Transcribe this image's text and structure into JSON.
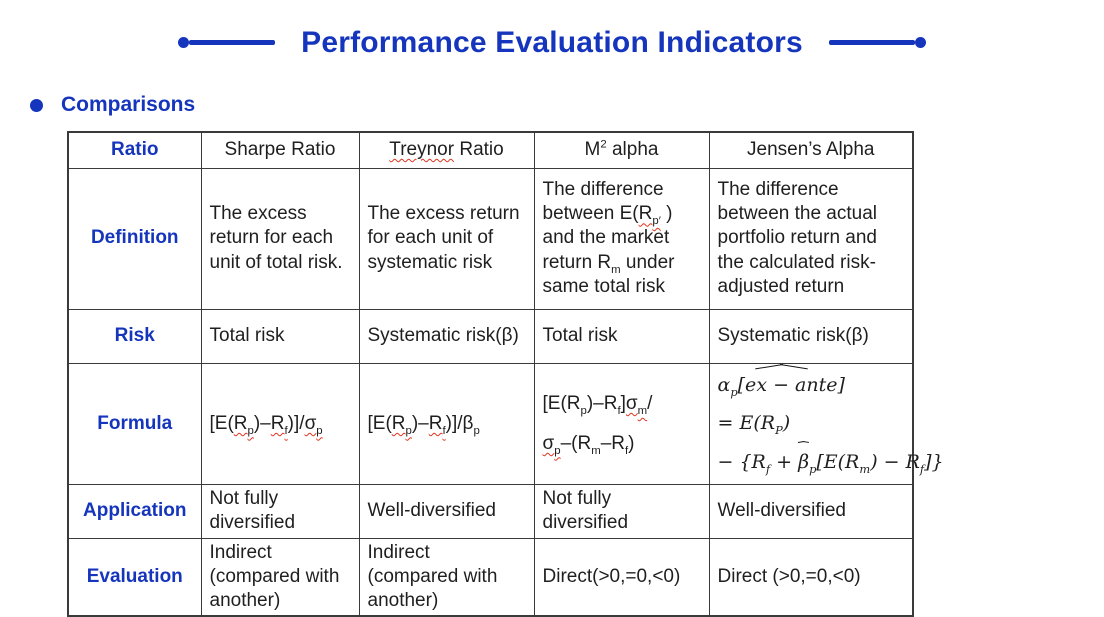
{
  "colors": {
    "accent_blue": "#1535BD",
    "body_text": "#1F1F1F",
    "table_border": "#3A3A3A",
    "spellcheck_red": "#E0321E"
  },
  "title": {
    "text": "Performance Evaluation Indicators"
  },
  "section": {
    "label": "Comparisons"
  },
  "table": {
    "corner_label": "Ratio",
    "headers": {
      "sharpe": "Sharpe Ratio",
      "treynor": [
        {
          "t": "Treynor",
          "sq": true
        },
        {
          "t": " Ratio"
        }
      ],
      "m2": [
        {
          "t": "M"
        },
        {
          "t": "2",
          "sup": true
        },
        {
          "t": " alpha"
        }
      ],
      "jensen": "Jensen’s Alpha"
    },
    "definition": {
      "label": "Definition",
      "sharpe": "The excess return for each unit of total risk.",
      "treynor": "The excess return for each unit of systematic risk",
      "m2": [
        {
          "t": "The difference between E("
        },
        {
          "t": "R",
          "sq": true
        },
        {
          "t": "p′",
          "sub": true,
          "sq": true
        },
        {
          "t": " ) and the market return R"
        },
        {
          "t": "m",
          "sub": true
        },
        {
          "t": " under same total risk"
        }
      ],
      "jensen": "The difference between the actual portfolio return and the calculated risk-adjusted return"
    },
    "risk": {
      "label": "Risk",
      "sharpe": "Total risk",
      "treynor": "Systematic risk(β)",
      "m2": "Total risk",
      "jensen": "Systematic risk(β)"
    },
    "formula": {
      "label": "Formula",
      "sharpe": [
        {
          "t": "[E("
        },
        {
          "t": "R",
          "sq": true
        },
        {
          "t": "p",
          "sub": true,
          "sq": true
        },
        {
          "t": ")–"
        },
        {
          "t": "R",
          "sq": true
        },
        {
          "t": "f",
          "sub": true,
          "sq": true
        },
        {
          "t": ")]/"
        },
        {
          "t": "σ",
          "sq": true
        },
        {
          "t": "p",
          "sub": true,
          "sq": true
        }
      ],
      "treynor": [
        {
          "t": "[E("
        },
        {
          "t": "R",
          "sq": true
        },
        {
          "t": "p",
          "sub": true,
          "sq": true
        },
        {
          "t": ")–"
        },
        {
          "t": "R",
          "sq": true
        },
        {
          "t": "f",
          "sub": true,
          "sq": true
        },
        {
          "t": ")]/β"
        },
        {
          "t": "p",
          "sub": true
        }
      ],
      "m2_line1": [
        {
          "t": "[E(R"
        },
        {
          "t": "p",
          "sub": true
        },
        {
          "t": ")–R"
        },
        {
          "t": "f",
          "sub": true
        },
        {
          "t": "]"
        },
        {
          "t": "σ",
          "sq": true
        },
        {
          "t": "m",
          "sub": true,
          "sq": true
        },
        {
          "t": "/"
        }
      ],
      "m2_line2": [
        {
          "t": "σ",
          "sq": true
        },
        {
          "t": "p",
          "sub": true,
          "sq": true
        },
        {
          "t": "–(R"
        },
        {
          "t": "m",
          "sub": true
        },
        {
          "t": "–R"
        },
        {
          "t": "f",
          "sub": true
        },
        {
          "t": ")"
        }
      ],
      "jensen_line1": [
        {
          "t": "α"
        },
        {
          "t": "p",
          "sub": true
        },
        {
          "t": "[e"
        },
        {
          "t": "x − a",
          "hat": true
        },
        {
          "t": "nte]"
        }
      ],
      "jensen_line2": [
        {
          "t": "= E(R"
        },
        {
          "t": "P",
          "sub": true
        },
        {
          "t": ")"
        }
      ],
      "jensen_line3": [
        {
          "t": "− {R"
        },
        {
          "t": "f",
          "sub": true
        },
        {
          "t": " + "
        },
        {
          "t": "β",
          "hat": true
        },
        {
          "t": "p",
          "sub": true
        },
        {
          "t": "[E(R"
        },
        {
          "t": "m",
          "sub": true
        },
        {
          "t": ") − R"
        },
        {
          "t": "f",
          "sub": true
        },
        {
          "t": "]}"
        }
      ]
    },
    "application": {
      "label": "Application",
      "sharpe": "Not fully diversified",
      "treynor": "Well-diversified",
      "m2": "Not fully diversified",
      "jensen": "Well-diversified"
    },
    "evaluation": {
      "label": "Evaluation",
      "sharpe": "Indirect (compared with another)",
      "treynor": "Indirect (compared with another)",
      "m2": "Direct(>0,=0,<0)",
      "jensen": "Direct (>0,=0,<0)"
    }
  }
}
